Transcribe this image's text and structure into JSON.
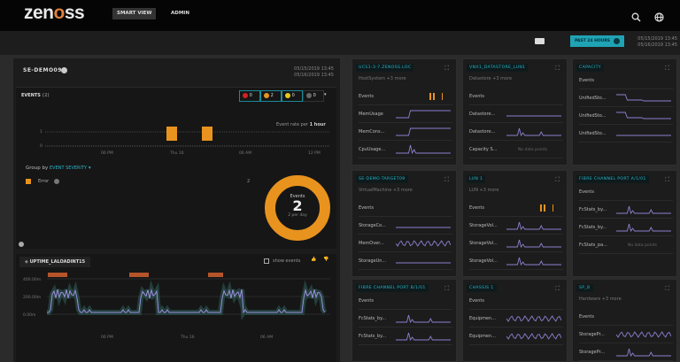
{
  "header": {
    "logo": "zenoss",
    "nav": [
      {
        "label": "SMART VIEW"
      },
      {
        "label": "ADMIN"
      }
    ]
  },
  "toolbar": {
    "range_label": "PAST 24 HOURS",
    "date_from": "05/15/2019 13:45",
    "date_to": "05/16/2019 13:45"
  },
  "device": {
    "name": "SE-DEMO09",
    "date_from": "05/15/2019 13:45",
    "date_to": "05/16/2019 13:45",
    "events": {
      "title": "EVENTS",
      "count": "(2)",
      "severity": [
        {
          "name": "critical",
          "count": "0",
          "color": "#d42020"
        },
        {
          "name": "error",
          "count": "2",
          "color": "#e8931e"
        },
        {
          "name": "warning",
          "count": "0",
          "color": "#e8c81e"
        },
        {
          "name": "info",
          "count": "0",
          "color": "#666666"
        }
      ],
      "rate_label": "Event rate per",
      "rate_unit": "1 hour",
      "chart_data": {
        "type": "bar",
        "y_ticks": [
          "1",
          "0"
        ],
        "x_ticks": [
          "06 PM",
          "Thu 16",
          "06 AM",
          "12 PM"
        ],
        "bars": [
          {
            "x": "Thu 16 ~01:00",
            "value": 1
          },
          {
            "x": "Thu 16 ~03:00",
            "value": 1
          }
        ],
        "color": "#e8931e"
      },
      "group_by_label": "Group by",
      "group_by_value": "EVENT SEVERITY",
      "legend": [
        {
          "label": "Error",
          "count": "2",
          "color": "#e8931e"
        }
      ],
      "donut": {
        "label": "Events",
        "value": "2",
        "sub": "2 per day",
        "color": "#e8931e"
      }
    },
    "metric": {
      "title": "UPTIME_LALOADINT15",
      "show_events": "show events",
      "y_ticks": [
        "400.00m",
        "200.00m",
        "0.00m"
      ],
      "x_ticks": [
        "06 PM",
        "Thu 16",
        "06 AM",
        "12 PM"
      ]
    }
  },
  "cards": [
    {
      "title": "UCS1-3-7.ZENOSS.LOC",
      "sub": "HostSystem  +3 more",
      "rows": [
        {
          "label": "Events",
          "spark": "events"
        },
        {
          "label": "MemUsage",
          "spark": "step-up"
        },
        {
          "label": "MemCons...",
          "spark": "step-up"
        },
        {
          "label": "CpuUsage...",
          "spark": "spike"
        }
      ]
    },
    {
      "title": "VNX1_DATASTORE_LUN1",
      "sub": "Datastore  +3 more",
      "rows": [
        {
          "label": "Events",
          "spark": "none"
        },
        {
          "label": "Datastore...",
          "spark": "flat"
        },
        {
          "label": "Datastore...",
          "spark": "spike2"
        },
        {
          "label": "Capacity S...",
          "spark": "none",
          "nodata": "No data points"
        }
      ]
    },
    {
      "title": "CAPACITY",
      "sub": "",
      "rows": [
        {
          "label": "Events",
          "spark": "none"
        },
        {
          "label": "UnifiedSto...",
          "spark": "step-down"
        },
        {
          "label": "UnifiedSto...",
          "spark": "step-down"
        },
        {
          "label": "UnifiedSto...",
          "spark": "flat"
        }
      ]
    },
    {
      "title": "SE-DEMO-TARGET09",
      "sub": "VirtualMachine  +3 more",
      "rows": [
        {
          "label": "Events",
          "spark": "none"
        },
        {
          "label": "StorageCo...",
          "spark": "flat"
        },
        {
          "label": "MemOver...",
          "spark": "noisy"
        },
        {
          "label": "StorageUn...",
          "spark": "flat"
        }
      ]
    },
    {
      "title": "LUN 1",
      "sub": "LUN  +3 more",
      "rows": [
        {
          "label": "Events",
          "spark": "events"
        },
        {
          "label": "StorageVol...",
          "spark": "spike2"
        },
        {
          "label": "StorageVol...",
          "spark": "spike2"
        },
        {
          "label": "StorageVol...",
          "spark": "spike2"
        }
      ]
    },
    {
      "title": "FIBRE CHANNEL PORT A/1/01",
      "sub": "",
      "rows": [
        {
          "label": "Events",
          "spark": "none"
        },
        {
          "label": "FcStats_by...",
          "spark": "spike2"
        },
        {
          "label": "FcStats_by...",
          "spark": "spike2"
        },
        {
          "label": "FcStats_pa...",
          "spark": "none",
          "nodata": "No data points"
        }
      ]
    },
    {
      "title": "FIBRE CHANNEL PORT B/1/01",
      "sub": "",
      "rows": [
        {
          "label": "Events",
          "spark": "none"
        },
        {
          "label": "FcStats_by...",
          "spark": "spike2"
        },
        {
          "label": "FcStats_by...",
          "spark": "spike2"
        }
      ]
    },
    {
      "title": "CHASSIS 1",
      "sub": "",
      "rows": [
        {
          "label": "Events",
          "spark": "none"
        },
        {
          "label": "Equipmen...",
          "spark": "noisy"
        },
        {
          "label": "Equipmen...",
          "spark": "noisy"
        }
      ]
    },
    {
      "title": "SP_B",
      "sub": "Hardware  +3 more",
      "rows": [
        {
          "label": "Events",
          "spark": "none"
        },
        {
          "label": "StoragePr...",
          "spark": "noisy"
        },
        {
          "label": "StoragePr...",
          "spark": "spike2"
        }
      ]
    }
  ],
  "colors": {
    "accent": "#1fa3b5",
    "spark": "#8c7fd0",
    "error": "#e8931e"
  }
}
